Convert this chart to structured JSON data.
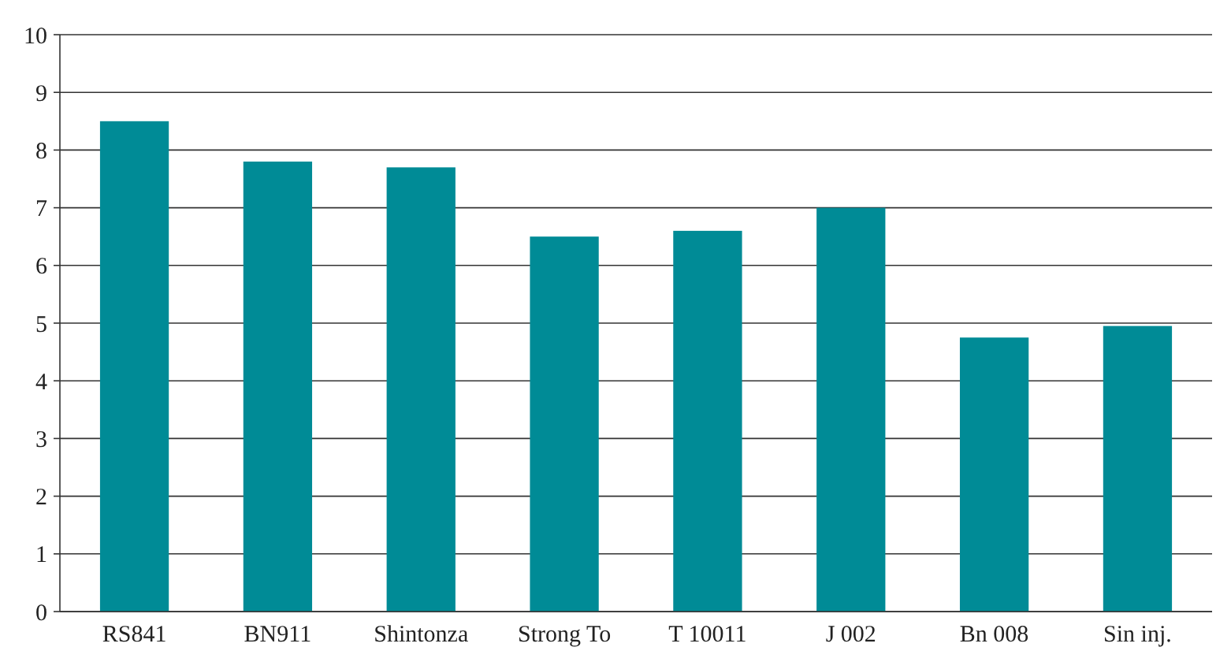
{
  "chart_data": {
    "type": "bar",
    "categories": [
      "RS841",
      "BN911",
      "Shintonza",
      "Strong To",
      "T 10011",
      "J 002",
      "Bn 008",
      "Sin inj."
    ],
    "values": [
      8.5,
      7.8,
      7.7,
      6.5,
      6.6,
      7.0,
      4.75,
      4.95
    ],
    "color": "#008b96",
    "ylim": [
      0,
      10
    ],
    "yticks": [
      0,
      1,
      2,
      3,
      4,
      5,
      6,
      7,
      8,
      9,
      10
    ],
    "grid": "y"
  }
}
